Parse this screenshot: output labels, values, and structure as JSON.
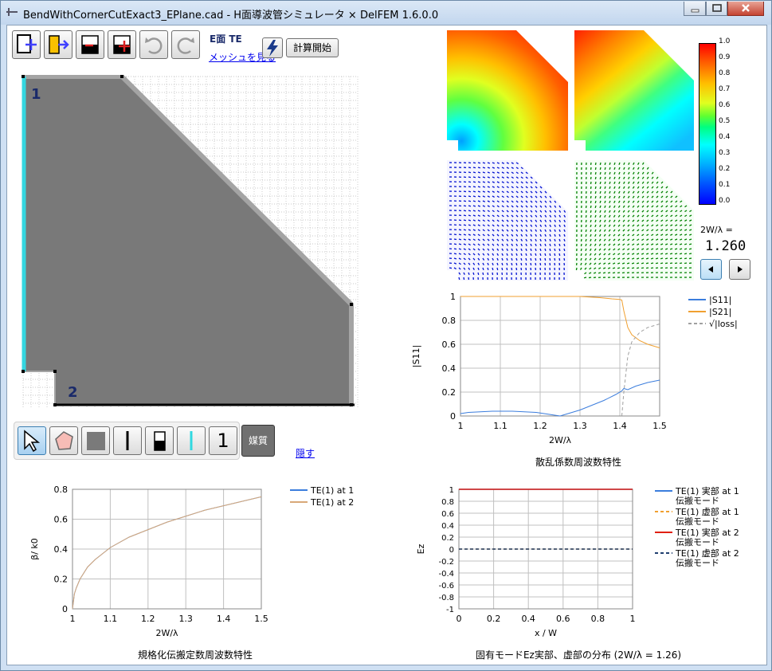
{
  "window": {
    "title": "BendWithCornerCutExact3_EPlane.cad - H面導波管シミュレータ × DelFEM 1.6.0.0"
  },
  "toolbar": {
    "mode_label": "E面 TE",
    "view_mesh_link": "メッシュを見る",
    "start_calc_label": "計算開始"
  },
  "cad": {
    "port1_label": "1",
    "port2_label": "2"
  },
  "draw_toolbar": {
    "port_number": "1",
    "medium_label": "媒質",
    "hide_link": "隠す"
  },
  "colorbar": {
    "ticks": [
      "1.0",
      "0.9",
      "0.8",
      "0.7",
      "0.6",
      "0.5",
      "0.4",
      "0.3",
      "0.2",
      "0.1",
      "0.0"
    ]
  },
  "freq": {
    "label": "2W/λ =",
    "value": "1.260"
  },
  "s_chart": {
    "caption": "散乱係数周波数特性",
    "ylabel": "|S11|",
    "xlabel": "2W/λ",
    "legend": [
      "|S11|",
      "|S21|",
      "√|loss|"
    ]
  },
  "beta_chart": {
    "caption": "規格化伝搬定数周波数特性",
    "ylabel": "β/ k0",
    "xlabel": "2W/λ",
    "legend": [
      "TE(1) at 1",
      "TE(1) at 2"
    ]
  },
  "ez_chart": {
    "caption": "固有モードEz実部、虚部の分布 (2W/λ = 1.26)",
    "ylabel": "Ez",
    "xlabel": "x / W",
    "legend": [
      {
        "l1": "TE(1) 実部 at 1",
        "l2": "伝搬モード"
      },
      {
        "l1": "TE(1) 虚部 at 1",
        "l2": "伝搬モード"
      },
      {
        "l1": "TE(1) 実部 at 2",
        "l2": "伝搬モード"
      },
      {
        "l1": "TE(1) 虚部 at 2",
        "l2": "伝搬モード"
      }
    ]
  },
  "colors": {
    "blue": "#3b7ddd",
    "orange": "#f0a030",
    "red": "#e02010",
    "gray": "#a0a0a0",
    "navy": "#1f3f6f",
    "tan": "#d8a878"
  },
  "chart_data": [
    {
      "type": "line",
      "title": "散乱係数周波数特性",
      "xlabel": "2W/λ",
      "ylabel": "|S11|",
      "xlim": [
        1,
        1.5
      ],
      "ylim": [
        0,
        1
      ],
      "xticks": [
        1,
        1.1,
        1.2,
        1.3,
        1.4,
        1.5
      ],
      "yticks": [
        0,
        0.2,
        0.4,
        0.6,
        0.8,
        1
      ],
      "series": [
        {
          "name": "|S11|",
          "x": [
            1.0,
            1.02,
            1.05,
            1.08,
            1.1,
            1.13,
            1.16,
            1.19,
            1.21,
            1.23,
            1.25,
            1.27,
            1.3,
            1.33,
            1.36,
            1.39,
            1.405,
            1.41,
            1.42,
            1.44,
            1.47,
            1.5
          ],
          "y": [
            0.02,
            0.03,
            0.035,
            0.04,
            0.04,
            0.04,
            0.035,
            0.03,
            0.02,
            0.01,
            0.0,
            0.02,
            0.05,
            0.09,
            0.13,
            0.18,
            0.21,
            0.23,
            0.22,
            0.25,
            0.28,
            0.3
          ]
        },
        {
          "name": "|S21|",
          "x": [
            1.0,
            1.1,
            1.2,
            1.3,
            1.35,
            1.38,
            1.4,
            1.405,
            1.41,
            1.42,
            1.43,
            1.45,
            1.47,
            1.5
          ],
          "y": [
            1.0,
            1.0,
            1.0,
            1.0,
            0.99,
            0.98,
            0.975,
            0.97,
            0.88,
            0.74,
            0.68,
            0.63,
            0.6,
            0.57
          ]
        },
        {
          "name": "√|loss|",
          "x": [
            1.405,
            1.41,
            1.42,
            1.43,
            1.45,
            1.47,
            1.5
          ],
          "y": [
            0.0,
            0.2,
            0.5,
            0.62,
            0.7,
            0.74,
            0.77
          ]
        }
      ]
    },
    {
      "type": "line",
      "title": "規格化伝搬定数周波数特性",
      "xlabel": "2W/λ",
      "ylabel": "β/ k0",
      "xlim": [
        1,
        1.5
      ],
      "ylim": [
        0,
        0.8
      ],
      "xticks": [
        1,
        1.1,
        1.2,
        1.3,
        1.4,
        1.5
      ],
      "yticks": [
        0,
        0.2,
        0.4,
        0.6,
        0.8
      ],
      "series": [
        {
          "name": "TE(1) at 1",
          "x": [
            1.0,
            1.005,
            1.01,
            1.02,
            1.04,
            1.06,
            1.08,
            1.1,
            1.15,
            1.2,
            1.25,
            1.3,
            1.35,
            1.4,
            1.45,
            1.5
          ],
          "y": [
            0.0,
            0.1,
            0.14,
            0.2,
            0.28,
            0.33,
            0.37,
            0.41,
            0.48,
            0.53,
            0.58,
            0.62,
            0.66,
            0.69,
            0.72,
            0.75
          ]
        },
        {
          "name": "TE(1) at 2",
          "x": [
            1.0,
            1.005,
            1.01,
            1.02,
            1.04,
            1.06,
            1.08,
            1.1,
            1.15,
            1.2,
            1.25,
            1.3,
            1.35,
            1.4,
            1.45,
            1.5
          ],
          "y": [
            0.0,
            0.1,
            0.14,
            0.2,
            0.28,
            0.33,
            0.37,
            0.41,
            0.48,
            0.53,
            0.58,
            0.62,
            0.66,
            0.69,
            0.72,
            0.75
          ]
        }
      ]
    },
    {
      "type": "line",
      "title": "固有モードEz実部、虚部の分布 (2W/λ = 1.26)",
      "xlabel": "x / W",
      "ylabel": "Ez",
      "xlim": [
        0,
        1
      ],
      "ylim": [
        -1,
        1
      ],
      "xticks": [
        0,
        0.2,
        0.4,
        0.6,
        0.8,
        1
      ],
      "yticks": [
        -1,
        -0.8,
        -0.6,
        -0.4,
        -0.2,
        0,
        0.2,
        0.4,
        0.6,
        0.8,
        1
      ],
      "series": [
        {
          "name": "TE(1) 実部 at 1",
          "x": [
            0,
            1
          ],
          "y": [
            1,
            1
          ]
        },
        {
          "name": "TE(1) 虚部 at 1",
          "x": [
            0,
            1
          ],
          "y": [
            0,
            0
          ]
        },
        {
          "name": "TE(1) 実部 at 2",
          "x": [
            0,
            1
          ],
          "y": [
            1,
            1
          ]
        },
        {
          "name": "TE(1) 虚部 at 2",
          "x": [
            0,
            1
          ],
          "y": [
            0,
            0
          ]
        }
      ]
    }
  ]
}
